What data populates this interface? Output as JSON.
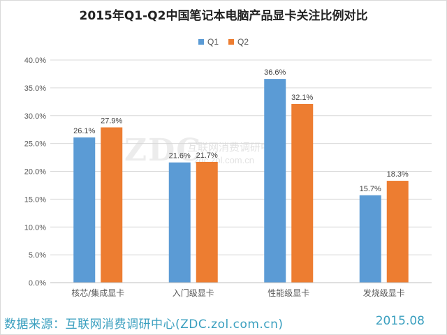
{
  "chart_data": {
    "type": "bar",
    "title": "2015年Q1-Q2中国笔记本电脑产品显卡关注比例对比",
    "categories": [
      "核芯/集成显卡",
      "入门级显卡",
      "性能级显卡",
      "发烧级显卡"
    ],
    "series": [
      {
        "name": "Q1",
        "color": "#5b9bd5",
        "values": [
          26.1,
          21.6,
          36.6,
          15.7
        ],
        "labels": [
          "26.1%",
          "21.6%",
          "36.6%",
          "15.7%"
        ]
      },
      {
        "name": "Q2",
        "color": "#ed7d31",
        "values": [
          27.9,
          21.7,
          32.1,
          18.3
        ],
        "labels": [
          "27.9%",
          "21.7%",
          "32.1%",
          "18.3%"
        ]
      }
    ],
    "ylim": [
      0,
      40
    ],
    "yticks": [
      0,
      5,
      10,
      15,
      20,
      25,
      30,
      35,
      40
    ],
    "ytick_labels": [
      "0.0%",
      "5.0%",
      "10.0%",
      "15.0%",
      "20.0%",
      "25.0%",
      "30.0%",
      "35.0%",
      "40.0%"
    ],
    "legend_position": "top-center",
    "grid": true,
    "xlabel": "",
    "ylabel": ""
  },
  "source": "数据来源：互联网消费调研中心(ZDC.zol.com.cn)",
  "date": "2015.08",
  "watermark": {
    "logo": "ZDC",
    "name": "互联网消费调研中心",
    "url": "zdc.zol.com.cn"
  },
  "colors": {
    "grid": "#d9d9d9",
    "axis_text": "#595959",
    "footer": "#3a9fbf"
  }
}
